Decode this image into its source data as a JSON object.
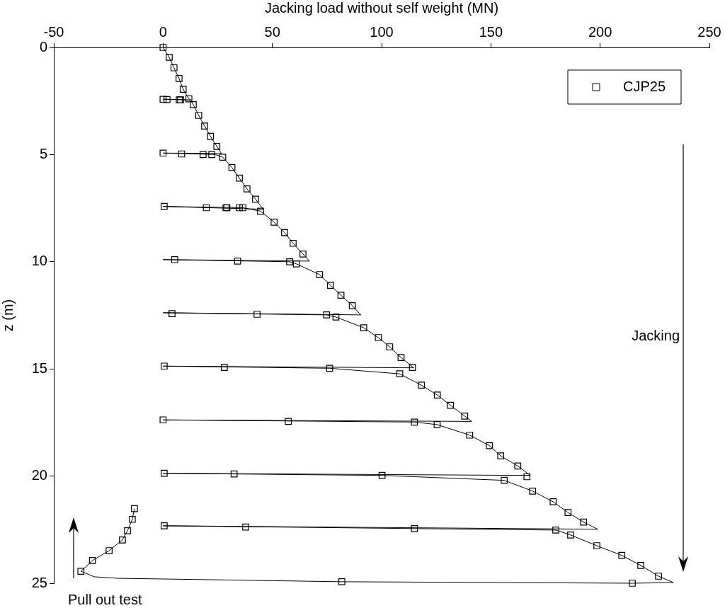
{
  "chart_data": {
    "type": "line",
    "xlabel": "Jacking load without self weight (MN)",
    "ylabel": "z (m)",
    "xlim": [
      -50,
      250
    ],
    "xticks": [
      -50,
      0,
      50,
      100,
      150,
      200,
      250
    ],
    "ylim": [
      25,
      0
    ],
    "yticks": [
      0,
      5,
      10,
      15,
      20,
      25
    ],
    "grid": false,
    "legend": "top right",
    "annotations": [
      "Jacking",
      "Pull out test"
    ],
    "series": [
      {
        "type": "line",
        "color": "#000000",
        "marker": "none",
        "line_style": "solid",
        "x": [
          0,
          2.8,
          5,
          7.3,
          9.2,
          11.8,
          12.8,
          0,
          7.4,
          12.8,
          13.8,
          16.3,
          19,
          21.7,
          24.6,
          26.7,
          0,
          18.3,
          24,
          27.3,
          31.5,
          34.9,
          38.4,
          42.3,
          45.8,
          0,
          36.5,
          44.6,
          50.8,
          55.6,
          59.5,
          64,
          67,
          0,
          57.9,
          61,
          71.6,
          76.6,
          81.4,
          86.6,
          90.5,
          0,
          74.8,
          79.1,
          91.8,
          98.5,
          103.7,
          108.9,
          114.7,
          0,
          76.2,
          108.3,
          118.2,
          125.5,
          131.5,
          138,
          141.2,
          0,
          115,
          125.4,
          140.3,
          149.3,
          154.5,
          162.3,
          168,
          0,
          100.2,
          156.1,
          169.1,
          178.5,
          185.3,
          192.4,
          198.9,
          0,
          115,
          179.7,
          186.5,
          198.5,
          209.9,
          218.6,
          226.7,
          233.5,
          214.7,
          81.8,
          -20.5,
          -31.5,
          -37.6,
          -32.3,
          -24.7,
          -18.6,
          -16.3,
          -14.1,
          -13.1
        ],
        "values": [
          0,
          0.46,
          0.95,
          1.45,
          1.95,
          2.4,
          2.45,
          2.42,
          2.43,
          2.47,
          2.67,
          3.17,
          3.67,
          4.15,
          4.62,
          4.95,
          4.93,
          4.98,
          5.0,
          5.12,
          5.6,
          6.1,
          6.6,
          7.08,
          7.55,
          7.42,
          7.48,
          7.64,
          8.15,
          8.64,
          9.14,
          9.64,
          9.97,
          9.9,
          10.0,
          10.1,
          10.6,
          11.1,
          11.56,
          12.05,
          12.48,
          12.38,
          12.48,
          12.58,
          13.08,
          13.54,
          13.97,
          14.47,
          14.95,
          14.87,
          14.97,
          15.23,
          15.76,
          16.22,
          16.7,
          17.2,
          17.45,
          17.38,
          17.48,
          17.6,
          18.09,
          18.58,
          19.06,
          19.53,
          19.97,
          19.87,
          19.97,
          20.2,
          20.7,
          21.2,
          21.7,
          22.15,
          22.48,
          22.32,
          22.45,
          22.52,
          22.75,
          23.25,
          23.7,
          24.17,
          24.67,
          24.97,
          25.0,
          24.93,
          24.77,
          24.7,
          24.44,
          23.94,
          23.48,
          22.98,
          22.55,
          22.02,
          21.52
        ]
      },
      {
        "type": "scatter",
        "name": "CJP25",
        "color": "#000000",
        "marker": "square",
        "x": [
          0,
          2.8,
          5,
          7.3,
          9.2,
          11.8,
          13.8,
          16.3,
          19,
          21.7,
          24.6,
          27.3,
          31.5,
          34.9,
          38.4,
          42.3,
          44.6,
          0,
          1.8,
          7.4,
          8,
          0,
          8.5,
          18.3,
          22.3,
          0.5,
          19.8,
          28.8,
          29.2,
          34.9,
          36.5,
          50.8,
          55.6,
          59.5,
          64,
          5.3,
          34.1,
          57.9,
          61,
          71.6,
          76.6,
          81.4,
          86.6,
          4.1,
          43,
          74.8,
          79.1,
          91.8,
          98.5,
          103.7,
          108.9,
          114.1,
          0.5,
          28,
          76.2,
          108.3,
          118.2,
          125.5,
          131.5,
          138,
          0,
          57.3,
          115,
          125.4,
          140.3,
          149.3,
          154.5,
          162.3,
          166.5,
          0.5,
          32.5,
          100.2,
          156.1,
          169.1,
          178.5,
          185.3,
          192.4,
          0.5,
          37.8,
          115,
          179.7,
          186.5,
          198.5,
          209.9,
          218.6,
          226.7,
          214.7,
          81.8,
          -37.6,
          -32.3,
          -24.7,
          -18.6,
          -16.3,
          -14.1,
          -13.1
        ],
        "values": [
          0,
          0.46,
          0.95,
          1.45,
          1.95,
          2.4,
          2.67,
          3.17,
          3.67,
          4.15,
          4.62,
          5.12,
          5.6,
          6.1,
          6.6,
          7.08,
          7.64,
          2.42,
          2.43,
          2.45,
          2.45,
          4.93,
          4.97,
          5.0,
          5.0,
          7.42,
          7.48,
          7.48,
          7.48,
          7.48,
          7.48,
          8.15,
          8.64,
          9.14,
          9.64,
          9.9,
          9.97,
          10.0,
          10.1,
          10.6,
          11.1,
          11.56,
          12.05,
          12.42,
          12.45,
          12.48,
          12.58,
          13.08,
          13.54,
          13.97,
          14.47,
          14.93,
          14.87,
          14.93,
          14.97,
          15.23,
          15.76,
          16.22,
          16.7,
          17.2,
          17.38,
          17.45,
          17.48,
          17.6,
          18.09,
          18.58,
          19.06,
          19.53,
          20.03,
          19.87,
          19.9,
          19.97,
          20.2,
          20.7,
          21.2,
          21.7,
          22.15,
          22.32,
          22.38,
          22.45,
          22.52,
          22.75,
          23.25,
          23.7,
          24.17,
          24.67,
          25.0,
          24.93,
          24.44,
          23.94,
          23.48,
          22.98,
          22.55,
          22.02,
          21.52
        ]
      }
    ]
  }
}
